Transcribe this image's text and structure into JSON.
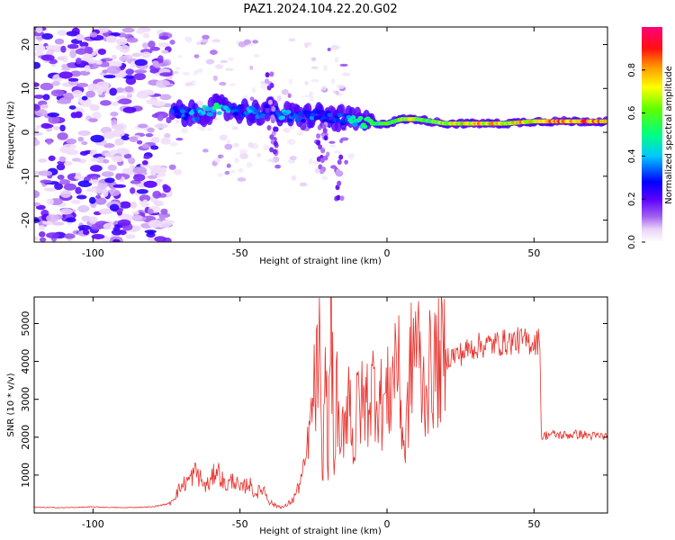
{
  "title": "PAZ1.2024.104.22.20.G02",
  "chart_data": [
    {
      "type": "heatmap",
      "xlabel": "Height of straight line (km)",
      "ylabel": "Frequency (Hz)",
      "xlim": [
        -120,
        75
      ],
      "ylim": [
        -25,
        24
      ],
      "x_ticks": [
        "-100",
        "-50",
        "0",
        "50"
      ],
      "x_tick_values": [
        -100,
        -50,
        0,
        50
      ],
      "y_ticks": [
        "-20",
        "-10",
        "0",
        "10",
        "20"
      ],
      "y_tick_values": [
        -20,
        -10,
        0,
        10,
        20
      ],
      "colorbar": {
        "label": "Normalized spectral amplitude",
        "ticks": [
          "0.0",
          "0.2",
          "0.4",
          "0.6",
          "0.8"
        ],
        "tick_values": [
          0.0,
          0.2,
          0.4,
          0.6,
          0.8
        ],
        "range": [
          0,
          1
        ]
      },
      "noise_region_km": [
        -120,
        -74
      ],
      "ridge": {
        "x_km": [
          -73,
          -65,
          -58,
          -50,
          -45,
          -40,
          -35,
          -30,
          -25,
          -20,
          -15,
          -10,
          -5,
          0,
          5,
          10,
          15,
          20,
          30,
          40,
          50,
          60,
          70,
          75
        ],
        "freq_hz": [
          4.5,
          4.0,
          5.5,
          5.0,
          4.5,
          5.0,
          4.0,
          3.5,
          4.0,
          3.5,
          3.0,
          2.5,
          2.0,
          2.0,
          3.0,
          3.0,
          2.5,
          2.0,
          2.0,
          2.0,
          2.5,
          2.5,
          2.5,
          2.5
        ],
        "amplitude": [
          0.3,
          0.4,
          0.5,
          0.3,
          0.4,
          0.3,
          0.4,
          0.3,
          0.35,
          0.3,
          0.35,
          0.5,
          0.6,
          0.55,
          0.7,
          0.65,
          0.6,
          0.7,
          0.8,
          0.75,
          0.8,
          0.9,
          0.9,
          0.85
        ]
      },
      "grid": false
    },
    {
      "type": "line",
      "xlabel": "Height of straight line (km)",
      "ylabel": "SNR (10 * v/v)",
      "xlim": [
        -120,
        75
      ],
      "ylim": [
        0,
        5700
      ],
      "x_ticks": [
        "-100",
        "-50",
        "0",
        "50"
      ],
      "x_tick_values": [
        -100,
        -50,
        0,
        50
      ],
      "y_ticks": [
        "1000",
        "2000",
        "3000",
        "4000",
        "5000"
      ],
      "y_tick_values": [
        1000,
        2000,
        3000,
        4000,
        5000
      ],
      "series": [
        {
          "color": "#e8302b",
          "x": [
            -120,
            -110,
            -100,
            -90,
            -80,
            -74,
            -70,
            -67,
            -65,
            -62,
            -60,
            -58,
            -55,
            -52,
            -50,
            -47,
            -45,
            -42,
            -40,
            -38,
            -35,
            -32,
            -30,
            -28,
            -25,
            -23,
            -22,
            -21,
            -20,
            -19,
            -18,
            -17,
            -16,
            -15,
            -13,
            -11,
            -10,
            -8,
            -6,
            -4,
            -2,
            0,
            2,
            3,
            4,
            6,
            8,
            10,
            12,
            15,
            20,
            25,
            30,
            35,
            40,
            45,
            50,
            52,
            52.5,
            55,
            60,
            65,
            70,
            75
          ],
          "y": [
            150,
            140,
            160,
            140,
            160,
            250,
            700,
            900,
            1100,
            700,
            800,
            1200,
            700,
            900,
            600,
            800,
            500,
            650,
            300,
            200,
            150,
            350,
            700,
            1200,
            3000,
            4100,
            700,
            4000,
            1500,
            5700,
            900,
            3500,
            1200,
            2300,
            3300,
            1500,
            3000,
            2800,
            3100,
            3400,
            2900,
            3000,
            3500,
            4500,
            3600,
            1500,
            3800,
            4800,
            3200,
            3800,
            4100,
            4200,
            4400,
            4450,
            4500,
            4550,
            4500,
            4550,
            2000,
            2080,
            2050,
            2080,
            2030,
            2020
          ],
          "noise_amplitude": [
            0.08,
            0.3,
            0.45,
            0.08,
            0.06
          ]
        }
      ],
      "grid": false
    }
  ]
}
